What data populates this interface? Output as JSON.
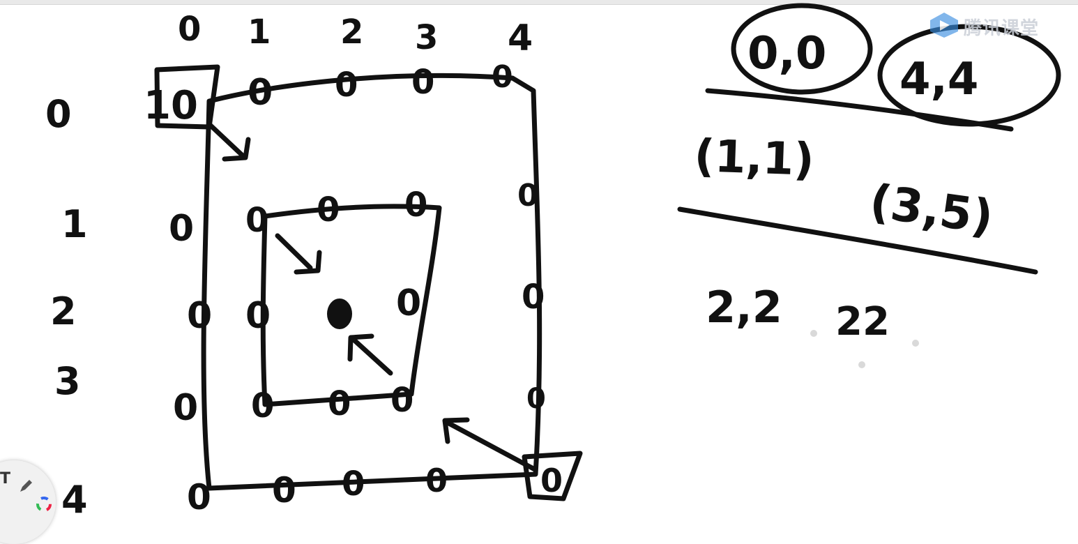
{
  "watermark": {
    "text": "腾讯课堂",
    "icon": "tencent-classroom-logo-icon"
  },
  "grid": {
    "column_labels": [
      "0",
      "1",
      "2",
      "3",
      "4"
    ],
    "row_labels": [
      "0",
      "1",
      "2",
      "3",
      "4"
    ],
    "cells": {
      "top_left": "10",
      "row0": [
        "0",
        "0",
        "0",
        "0"
      ],
      "row1": [
        "0",
        "0",
        "0",
        "0",
        "0"
      ],
      "row2": [
        "0",
        "0",
        "0",
        "0"
      ],
      "row4": [
        "0",
        "0",
        "0",
        "0",
        "0",
        "0"
      ]
    }
  },
  "notes": {
    "corner_a": "0,0",
    "corner_b": "4,4",
    "pair_1": "(1,1)",
    "pair_2": "(3,5)",
    "line_3_a": "2,2",
    "line_3_b": "22"
  },
  "toolbar": {
    "text_tool": "T",
    "pen_tool_icon": "pen-icon",
    "color_tool_icon": "color-wheel-icon"
  },
  "colors": {
    "ink": "#111111",
    "watermark": "#c9ced6",
    "accent": "#3a8de0"
  }
}
